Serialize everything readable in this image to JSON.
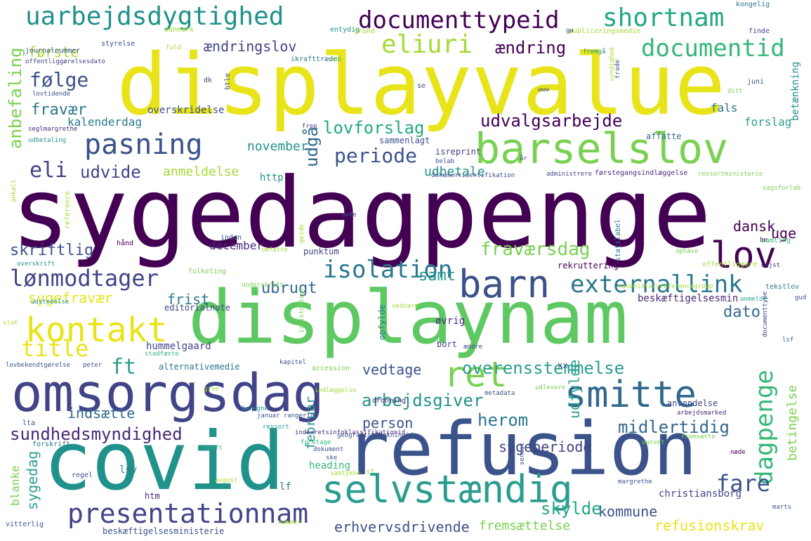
{
  "words": [
    {
      "text": "sygedagpenge",
      "color": "#440154"
    },
    {
      "text": "displayvalue",
      "color": "#e8e419"
    },
    {
      "text": "displaynam",
      "color": "#5ec962"
    },
    {
      "text": "refusion",
      "color": "#3b528b"
    },
    {
      "text": "covid",
      "color": "#21918c"
    },
    {
      "text": "omsorgsdag",
      "color": "#414487"
    },
    {
      "text": "barselslov",
      "color": "#7ad151"
    },
    {
      "text": "selvstændig",
      "color": "#2a9d8f"
    },
    {
      "text": "smitte",
      "color": "#31688e"
    },
    {
      "text": "barn",
      "color": "#3b528b"
    },
    {
      "text": "lov",
      "color": "#440154"
    },
    {
      "text": "ret",
      "color": "#7ad151"
    },
    {
      "text": "kontakt",
      "color": "#e8e419"
    },
    {
      "text": "presentationnam",
      "color": "#414487"
    },
    {
      "text": "uarbejdsdygtighed",
      "color": "#21918c"
    },
    {
      "text": "documenttypeid",
      "color": "#440154"
    },
    {
      "text": "shortnam",
      "color": "#22a884"
    },
    {
      "text": "documentid",
      "color": "#35b779"
    },
    {
      "text": "eliuri",
      "color": "#a5db36"
    },
    {
      "text": "pasning",
      "color": "#3b528b"
    },
    {
      "text": "isolation",
      "color": "#2a788e"
    },
    {
      "text": "externallink",
      "color": "#2a788e"
    },
    {
      "text": "lønmodtager",
      "color": "#414487"
    },
    {
      "text": "title",
      "color": "#e8e419"
    },
    {
      "text": "dagpenge",
      "color": "#35b779"
    },
    {
      "text": "fare",
      "color": "#3b528b"
    },
    {
      "text": "følge",
      "color": "#3b528b"
    },
    {
      "text": "fraværsdag",
      "color": "#7ad151"
    },
    {
      "text": "arbejdsgiver",
      "color": "#21918c"
    },
    {
      "text": "sundhedsmyndighed",
      "color": "#482878"
    },
    {
      "text": "herom",
      "color": "#2a788e"
    },
    {
      "text": "midlertidig",
      "color": "#31688e"
    },
    {
      "text": "ændring",
      "color": "#440154"
    },
    {
      "text": "ændringslov",
      "color": "#414487"
    },
    {
      "text": "første",
      "color": "#a5db36"
    },
    {
      "text": "anbefaling",
      "color": "#7ad151"
    },
    {
      "text": "fravær",
      "color": "#2a788e"
    },
    {
      "text": "lovforslag",
      "color": "#22a884"
    },
    {
      "text": "udvalgsarbejde",
      "color": "#440154"
    },
    {
      "text": "periode",
      "color": "#3b528b"
    },
    {
      "text": "eli",
      "color": "#414487"
    },
    {
      "text": "udvide",
      "color": "#414487"
    },
    {
      "text": "udgå",
      "color": "#31688e"
    },
    {
      "text": "november",
      "color": "#21918c"
    },
    {
      "text": "anmeldelse",
      "color": "#a5db36"
    },
    {
      "text": "udbetale",
      "color": "#21918c"
    },
    {
      "text": "kalenderdag",
      "color": "#2a788e"
    },
    {
      "text": "overskridelse",
      "color": "#3b528b"
    },
    {
      "text": "ft",
      "color": "#2a9d8f"
    },
    {
      "text": "overensstemmelse",
      "color": "#2a9d8f"
    },
    {
      "text": "sygefravær",
      "color": "#e8e419"
    },
    {
      "text": "frist",
      "color": "#2a788e"
    },
    {
      "text": "skriftlig",
      "color": "#3b528b"
    },
    {
      "text": "ubrugt",
      "color": "#31688e"
    },
    {
      "text": "samt",
      "color": "#21918c"
    },
    {
      "text": "dato",
      "color": "#31688e"
    },
    {
      "text": "dansk",
      "color": "#440154"
    },
    {
      "text": "uge",
      "color": "#440154"
    },
    {
      "text": "december",
      "color": "#482878"
    },
    {
      "text": "vedtage",
      "color": "#3b528b"
    },
    {
      "text": "udfylde",
      "color": "#2a9d8f"
    },
    {
      "text": "indsætte",
      "color": "#31688e"
    },
    {
      "text": "person",
      "color": "#3b528b"
    },
    {
      "text": "sygeperiode",
      "color": "#414487"
    },
    {
      "text": "sygedag",
      "color": "#2a9d8f"
    },
    {
      "text": "februar",
      "color": "#21918c"
    },
    {
      "text": "kommune",
      "color": "#3b528b"
    },
    {
      "text": "skylde",
      "color": "#22a884"
    },
    {
      "text": "erhvervsdrivende",
      "color": "#3b528b"
    },
    {
      "text": "fremsættelse",
      "color": "#7ad151"
    },
    {
      "text": "refusionskrav",
      "color": "#e8e419"
    },
    {
      "text": "betingelse",
      "color": "#7ad151"
    },
    {
      "text": "betænkning",
      "color": "#21918c"
    },
    {
      "text": "forslag",
      "color": "#2a9d8f"
    },
    {
      "text": "fals",
      "color": "#2a788e"
    },
    {
      "text": "christiansborg",
      "color": "#414487"
    },
    {
      "text": "blanke",
      "color": "#7ad151"
    },
    {
      "text": "lsv",
      "color": "#2a788e"
    },
    {
      "text": "htm",
      "color": "#482878"
    },
    {
      "text": "lf",
      "color": "#2a788e"
    },
    {
      "text": "heading",
      "color": "#35b779"
    },
    {
      "text": "editorialnote",
      "color": "#414487"
    },
    {
      "text": "hummelgaard",
      "color": "#414487"
    },
    {
      "text": "beskæftigelsesmin",
      "color": "#482878"
    },
    {
      "text": "alternativemedie",
      "color": "#2a788e"
    },
    {
      "text": "rekruttering",
      "color": "#440154"
    },
    {
      "text": "punktum",
      "color": "#414487"
    },
    {
      "text": "sammenlagt",
      "color": "#3b528b"
    },
    {
      "text": "isreprint",
      "color": "#414487"
    },
    {
      "text": "dokumentidentifikation",
      "color": "#3b528b"
    },
    {
      "text": "administrere",
      "color": "#414487"
    },
    {
      "text": "førstegangsindlæggelse",
      "color": "#482878"
    },
    {
      "text": "ressortministerie",
      "color": "#7ad151"
    },
    {
      "text": "affatte",
      "color": "#31688e"
    },
    {
      "text": "journalnummer",
      "color": "#3b528b"
    },
    {
      "text": "offentliggørelsesdato",
      "color": "#414487"
    },
    {
      "text": "styrelse",
      "color": "#3b528b"
    },
    {
      "text": "danmark",
      "color": "#a5db36"
    },
    {
      "text": "fuld",
      "color": "#a5db36"
    },
    {
      "text": "ikrafttræden",
      "color": "#2a788e"
    },
    {
      "text": "entydig",
      "color": "#21918c"
    },
    {
      "text": "grund",
      "color": "#a5db36"
    },
    {
      "text": "publiceringsmedie",
      "color": "#a5db36"
    },
    {
      "text": "kongelig",
      "color": "#2a788e"
    },
    {
      "text": "finde",
      "color": "#414487"
    },
    {
      "text": "juni",
      "color": "#3b528b"
    },
    {
      "text": "dk",
      "color": "#414487"
    },
    {
      "text": "btle",
      "color": "#3b528b"
    },
    {
      "text": "se",
      "color": "#414487"
    },
    {
      "text": "lovtidende",
      "color": "#3b528b"
    },
    {
      "text": "seglmargrethe",
      "color": "#482878"
    },
    {
      "text": "udbetaling",
      "color": "#21918c"
    },
    {
      "text": "free",
      "color": "#414487"
    },
    {
      "text": "http",
      "color": "#21918c"
    },
    {
      "text": "belab",
      "color": "#3b528b"
    },
    {
      "text": "sagsforlab",
      "color": "#7ad151"
    },
    {
      "text": "reference",
      "color": "#a5db36"
    },
    {
      "text": "unde",
      "color": "#3b528b"
    },
    {
      "text": "inden",
      "color": "#3b528b"
    },
    {
      "text": "hånd",
      "color": "#440154"
    },
    {
      "text": "omfatte",
      "color": "#a5db36"
    },
    {
      "text": "overskrift",
      "color": "#21918c"
    },
    {
      "text": "folketing",
      "color": "#7ad151"
    },
    {
      "text": "underskrift",
      "color": "#7ad151"
    },
    {
      "text": "statslabel",
      "color": "#2a788e"
    },
    {
      "text": "samling",
      "color": "#35b779"
    },
    {
      "text": "ophave",
      "color": "#7ad151"
    },
    {
      "text": "offentliggøre",
      "color": "#a5db36"
    },
    {
      "text": "højst",
      "color": "#482878"
    },
    {
      "text": "tekstlov",
      "color": "#2a788e"
    },
    {
      "text": "gud",
      "color": "#3b528b"
    },
    {
      "text": "vedrøre",
      "color": "#a5db36"
    },
    {
      "text": "øvrig",
      "color": "#482878"
    },
    {
      "text": "opfylde",
      "color": "#2a788e"
    },
    {
      "text": "bort",
      "color": "#414487"
    },
    {
      "text": "ændre",
      "color": "#414487"
    },
    {
      "text": "stadfæste",
      "color": "#35b779"
    },
    {
      "text": "kapitel",
      "color": "#3b528b"
    },
    {
      "text": "peter",
      "color": "#3b528b"
    },
    {
      "text": "lovbekendtgørelse",
      "color": "#3b528b"
    },
    {
      "text": "slot",
      "color": "#a5db36"
    },
    {
      "text": "udstedelse",
      "color": "#21918c"
    },
    {
      "text": "accession",
      "color": "#7ad151"
    },
    {
      "text": "xx",
      "color": "#3b528b"
    },
    {
      "text": "metadata",
      "color": "#3b528b"
    },
    {
      "text": "udlevere",
      "color": "#7ad151"
    },
    {
      "text": "indlæggelse",
      "color": "#a5db36"
    },
    {
      "text": "dronning",
      "color": "#482878"
    },
    {
      "text": "anvendelse",
      "color": "#414487"
    },
    {
      "text": "arbejdsmarked",
      "color": "#482878"
    },
    {
      "text": "anmelde",
      "color": "#22a884"
    },
    {
      "text": "lsf",
      "color": "#31688e"
    },
    {
      "text": "januar rangering",
      "color": "#3b528b"
    },
    {
      "text": "geografiskdaekningid",
      "color": "#3b528b"
    },
    {
      "text": "ressort",
      "color": "#2a9d8f"
    },
    {
      "text": "foretage",
      "color": "#35b779"
    },
    {
      "text": "indexretsinfoklassifikationid",
      "color": "#482878"
    },
    {
      "text": "dokument",
      "color": "#3b528b"
    },
    {
      "text": "kraft",
      "color": "#35b779"
    },
    {
      "text": "give",
      "color": "#a5db36"
    },
    {
      "text": "beregne",
      "color": "#21918c"
    },
    {
      "text": "forskrift",
      "color": "#2a788e"
    },
    {
      "text": "lta",
      "color": "#3b528b"
    },
    {
      "text": "regel",
      "color": "#3b528b"
    },
    {
      "text": "vitterlig",
      "color": "#3b528b"
    },
    {
      "text": "beskæftigelsesministerie",
      "color": "#3b528b"
    },
    {
      "text": "august",
      "color": "#a5db36"
    },
    {
      "text": "samtykke",
      "color": "#a5db36"
    },
    {
      "text": "ske",
      "color": "#3b528b"
    },
    {
      "text": "sf",
      "color": "#a5db36"
    },
    {
      "text": "margrethe",
      "color": "#3b528b"
    },
    {
      "text": "marts",
      "color": "#3b528b"
    },
    {
      "text": "næde",
      "color": "#440154"
    },
    {
      "text": "fremsætte",
      "color": "#7ad151"
    },
    {
      "text": "uanset",
      "color": "#7ad151"
    },
    {
      "text": "senest",
      "color": "#3b528b"
    },
    {
      "text": "nummer",
      "color": "#a5db36"
    },
    {
      "text": "fremgå",
      "color": "#21918c"
    },
    {
      "text": "trade",
      "color": "#3b528b"
    },
    {
      "text": "and",
      "color": "#a5db36"
    },
    {
      "text": "ga",
      "color": "#414487"
    },
    {
      "text": "år",
      "color": "#414487"
    },
    {
      "text": "be",
      "color": "#482878"
    },
    {
      "text": "ankalt",
      "color": "#a5db36"
    },
    {
      "text": "documenttype",
      "color": "#414487"
    },
    {
      "text": "ishistorical",
      "color": "#7ad151"
    },
    {
      "text": "casehistoryreferencegroup",
      "color": "#a5db36"
    },
    {
      "text": "syndighed",
      "color": "#a5db36"
    },
    {
      "text": "geide",
      "color": "#a5db36"
    },
    {
      "text": "www",
      "color": "#3b528b"
    },
    {
      "text": "ditt",
      "color": "#7ad151"
    }
  ]
}
